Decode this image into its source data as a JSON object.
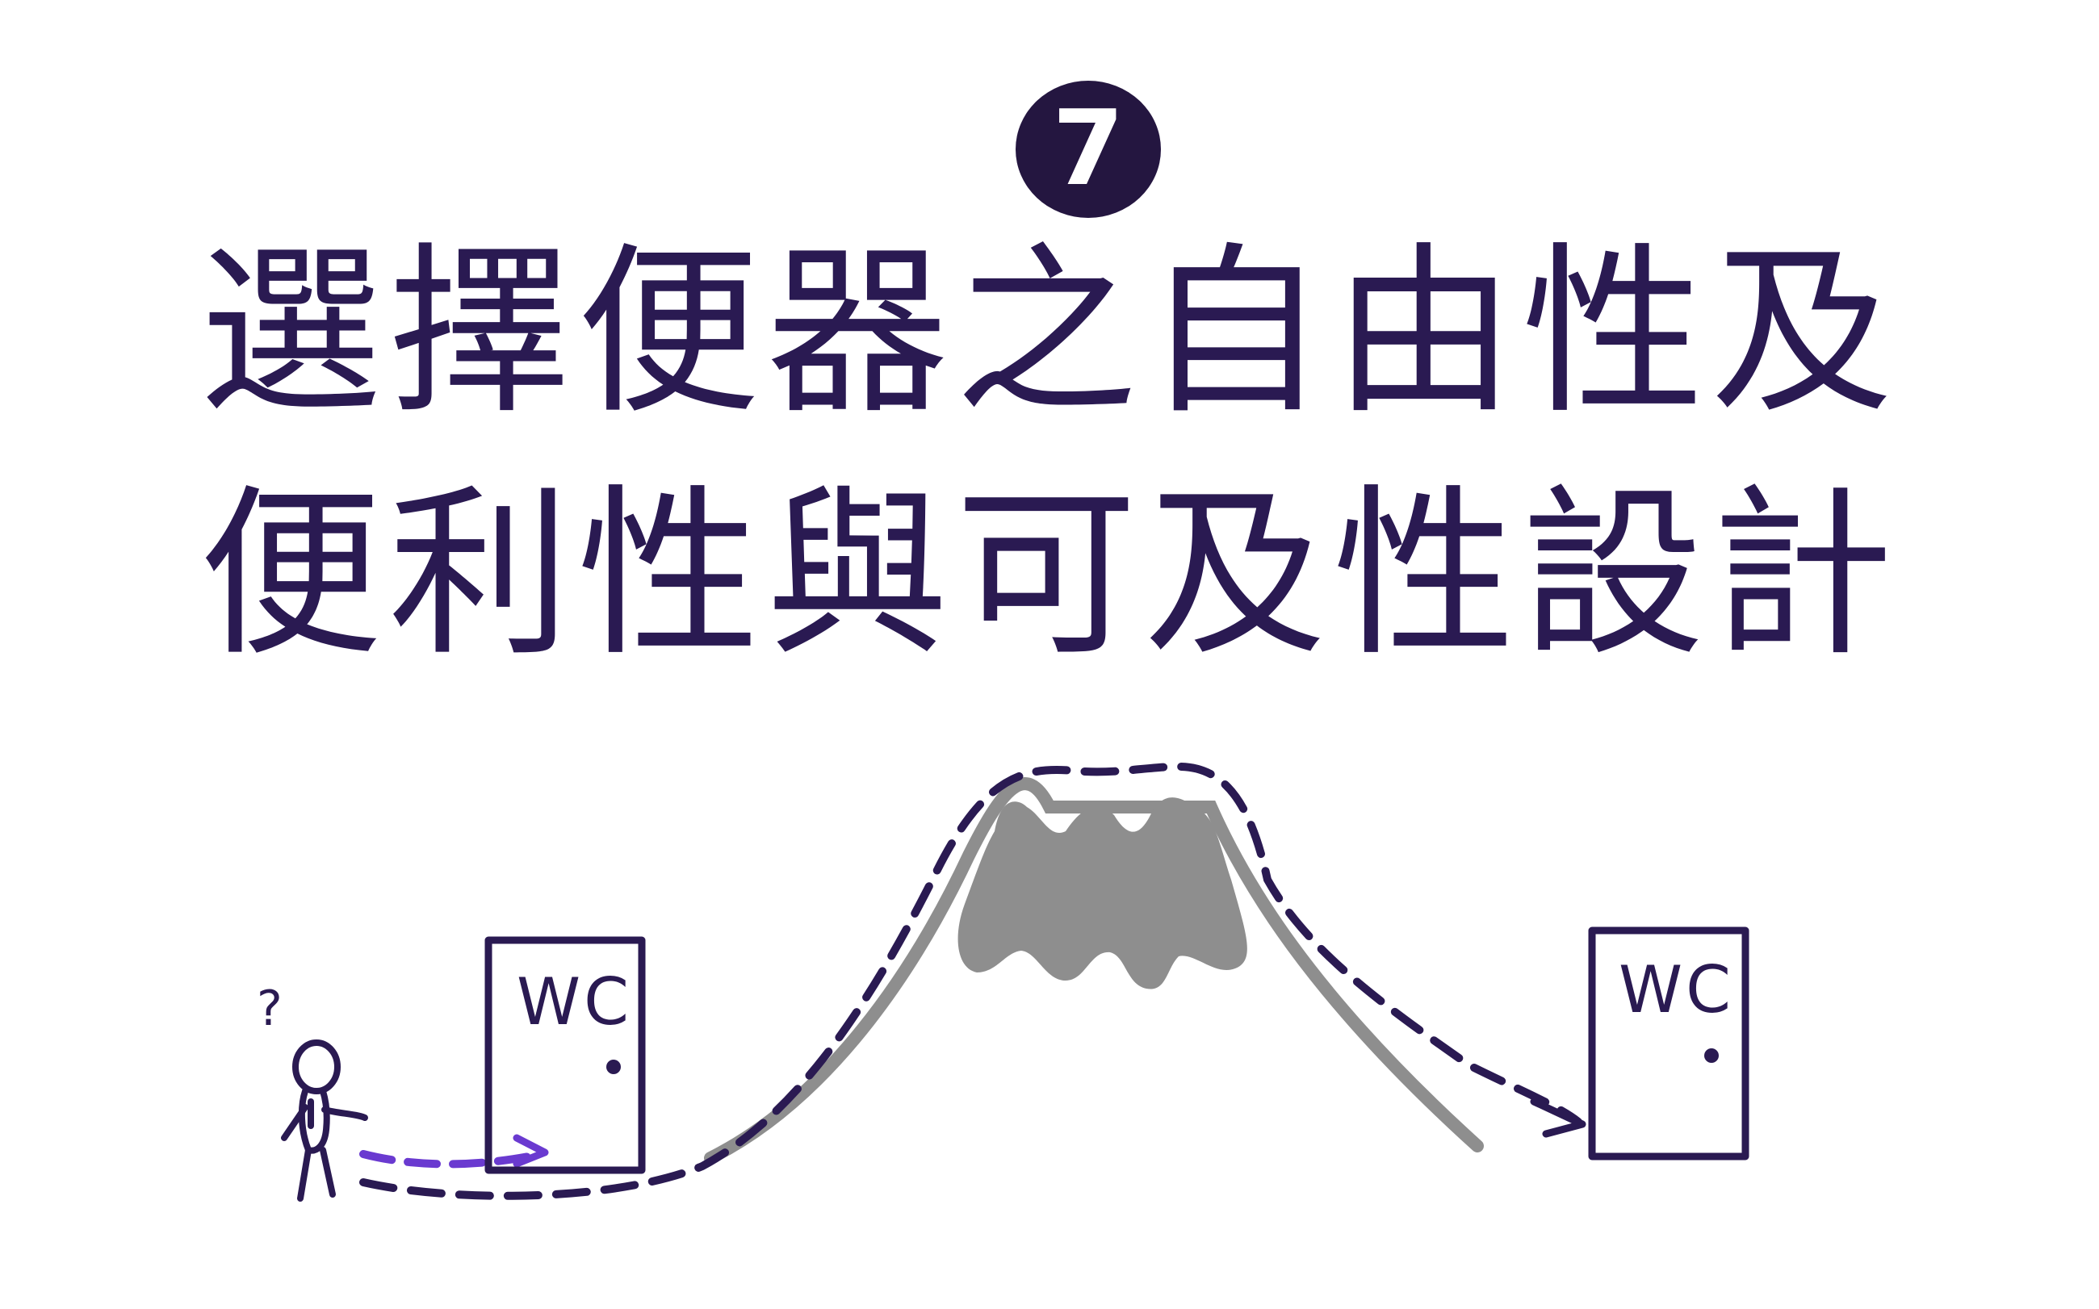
{
  "badge": {
    "number": "7"
  },
  "title": {
    "line1": "選擇便器之自由性及",
    "line2": "便利性與可及性設計"
  },
  "scene": {
    "doors": [
      {
        "label": "WC"
      },
      {
        "label": "WC"
      }
    ],
    "person_thought": "?",
    "colors": {
      "ink": "#2a1a52",
      "badge": "#241640",
      "mountain": "#8e8e8e",
      "short_path": "#6a3ad0"
    }
  }
}
